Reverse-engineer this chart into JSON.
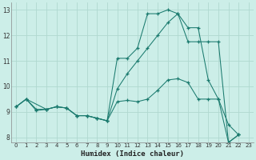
{
  "xlabel": "Humidex (Indice chaleur)",
  "bg_color": "#cceee8",
  "line_color": "#1a7a6e",
  "grid_color": "#b0d8d0",
  "xlim": [
    -0.5,
    23.5
  ],
  "ylim": [
    7.8,
    13.3
  ],
  "yticks": [
    8,
    9,
    10,
    11,
    12,
    13
  ],
  "xticks": [
    0,
    1,
    2,
    3,
    4,
    5,
    6,
    7,
    8,
    9,
    10,
    11,
    12,
    13,
    14,
    15,
    16,
    17,
    18,
    19,
    20,
    21,
    22,
    23
  ],
  "series": [
    {
      "x": [
        0,
        1,
        3,
        4,
        5,
        6,
        7,
        8,
        9,
        10,
        11,
        12,
        13,
        14,
        15,
        16,
        17,
        18,
        19,
        20,
        21,
        22
      ],
      "y": [
        9.2,
        9.5,
        9.1,
        9.2,
        9.15,
        8.85,
        8.85,
        8.75,
        8.65,
        11.1,
        11.1,
        11.5,
        12.85,
        12.85,
        13.0,
        12.85,
        12.3,
        12.3,
        10.25,
        9.5,
        7.8,
        8.1
      ]
    },
    {
      "x": [
        0,
        1,
        2,
        3,
        4,
        5,
        6,
        7,
        8,
        9,
        10,
        11,
        12,
        13,
        14,
        15,
        16,
        17,
        18,
        19,
        20,
        21,
        22
      ],
      "y": [
        9.2,
        9.5,
        9.1,
        9.1,
        9.2,
        9.15,
        8.85,
        8.85,
        8.75,
        8.65,
        9.9,
        10.5,
        11.0,
        11.5,
        12.0,
        12.5,
        12.85,
        11.75,
        11.75,
        11.75,
        11.75,
        7.8,
        8.1
      ]
    },
    {
      "x": [
        0,
        1,
        2,
        3,
        4,
        5,
        6,
        7,
        8,
        9,
        10,
        11,
        12,
        13,
        14,
        15,
        16,
        17,
        18,
        19,
        20,
        21,
        22
      ],
      "y": [
        9.2,
        9.5,
        9.05,
        9.1,
        9.2,
        9.15,
        8.85,
        8.85,
        8.75,
        8.65,
        9.4,
        9.45,
        9.4,
        9.5,
        9.85,
        10.25,
        10.3,
        10.15,
        9.5,
        9.5,
        9.5,
        8.5,
        8.1
      ]
    }
  ]
}
